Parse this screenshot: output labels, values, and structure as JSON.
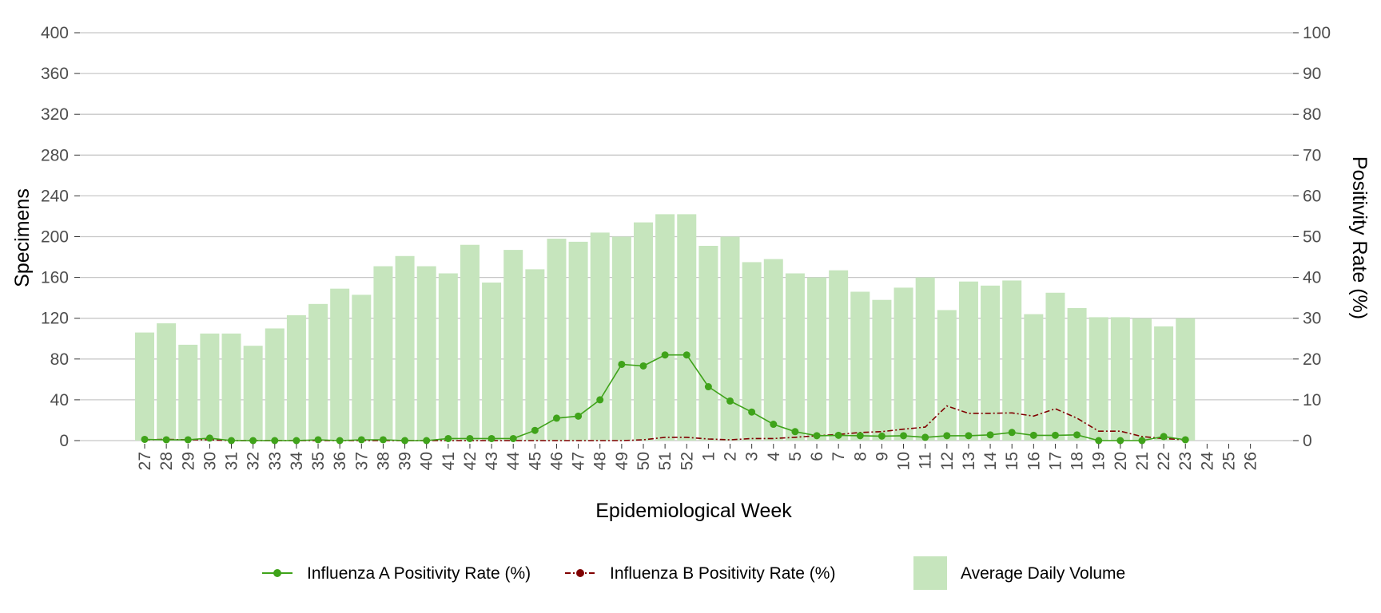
{
  "chart_data": {
    "type": "bar",
    "title": "",
    "xlabel": "Epidemiological Week",
    "ylabel": "Specimens",
    "y2label": "Positivity Rate (%)",
    "ylim": [
      0,
      400
    ],
    "y2lim": [
      0,
      100
    ],
    "yticks": [
      "0",
      "40",
      "80",
      "120",
      "160",
      "200",
      "240",
      "280",
      "320",
      "360",
      "400"
    ],
    "y2ticks": [
      "0",
      "10",
      "20",
      "30",
      "40",
      "50",
      "60",
      "70",
      "80",
      "90",
      "100"
    ],
    "grid": "horizontal",
    "legend_position": "bottom",
    "categories": [
      "27",
      "28",
      "29",
      "30",
      "31",
      "32",
      "33",
      "34",
      "35",
      "36",
      "37",
      "38",
      "39",
      "40",
      "41",
      "42",
      "43",
      "44",
      "45",
      "46",
      "47",
      "48",
      "49",
      "50",
      "51",
      "52",
      "1",
      "2",
      "3",
      "4",
      "5",
      "6",
      "7",
      "8",
      "9",
      "10",
      "11",
      "12",
      "13",
      "14",
      "15",
      "16",
      "17",
      "18",
      "19",
      "20",
      "21",
      "22",
      "23",
      "24",
      "25",
      "26"
    ],
    "series": [
      {
        "name": "Average Daily Volume",
        "kind": "bar",
        "axis": "left",
        "color": "#c6e5bd",
        "values": [
          106,
          115,
          94,
          105,
          105,
          93,
          110,
          123,
          134,
          149,
          143,
          171,
          181,
          171,
          164,
          192,
          155,
          187,
          168,
          198,
          195,
          204,
          200,
          214,
          222,
          222,
          191,
          200,
          175,
          178,
          164,
          160,
          167,
          146,
          138,
          150,
          160,
          128,
          156,
          152,
          157,
          124,
          145,
          130,
          121,
          121,
          120,
          112,
          120,
          null,
          null,
          null
        ]
      },
      {
        "name": "Influenza A Positivity Rate (%)",
        "kind": "line",
        "axis": "right",
        "color": "#3fa31a",
        "line_style": "solid",
        "values": [
          0.3,
          0.2,
          0.2,
          0.6,
          0,
          0,
          0,
          0,
          0.2,
          0,
          0.2,
          0.2,
          0,
          0,
          0.5,
          0.5,
          0.5,
          0.5,
          2.5,
          5.5,
          6,
          10,
          18.7,
          18.3,
          21,
          21,
          13.2,
          9.7,
          7,
          4,
          2.2,
          1.2,
          1.3,
          1.2,
          1.1,
          1.2,
          0.8,
          1.2,
          1.2,
          1.4,
          2,
          1.3,
          1.3,
          1.4,
          0,
          0,
          0,
          1,
          0.2,
          null,
          null,
          null
        ]
      },
      {
        "name": "Influenza B Positivity Rate (%)",
        "kind": "line",
        "axis": "right",
        "color": "#800000",
        "line_style": "dashdot",
        "marker_shown": false,
        "values": [
          0.2,
          0.3,
          0.2,
          0.2,
          0,
          0,
          0,
          0,
          0,
          0,
          0,
          0,
          0,
          0,
          0,
          0,
          0,
          0,
          0,
          0,
          0,
          0,
          0,
          0.2,
          0.8,
          0.8,
          0.4,
          0.2,
          0.5,
          0.5,
          0.8,
          1.2,
          1.5,
          2,
          2.2,
          2.8,
          3.3,
          8.5,
          6.7,
          6.7,
          6.8,
          6,
          7.8,
          5.5,
          2.3,
          2.3,
          1,
          0.5,
          0.2,
          null,
          null,
          null
        ]
      }
    ]
  }
}
